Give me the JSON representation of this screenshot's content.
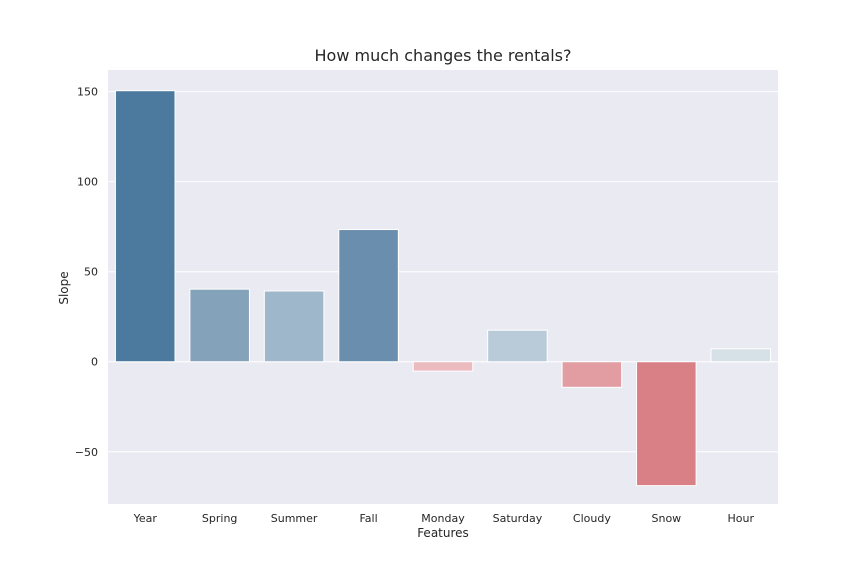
{
  "chart_data": {
    "type": "bar",
    "title": "How much changes the rentals?",
    "xlabel": "Features",
    "ylabel": "Slope",
    "categories": [
      "Year",
      "Spring",
      "Summer",
      "Fall",
      "Monday",
      "Saturday",
      "Cloudy",
      "Snow",
      "Hour"
    ],
    "values": [
      150.5,
      40.3,
      39.3,
      73.4,
      -5.2,
      17.5,
      -14.2,
      -68.8,
      7.2
    ],
    "ylim": [
      -79,
      162
    ],
    "yticks": [
      -50,
      0,
      50,
      100,
      150
    ],
    "ytick_labels": [
      "−50",
      "0",
      "50",
      "100",
      "150"
    ],
    "grid": true,
    "colors": [
      "#4b7a9e",
      "#84a2ba",
      "#9fb7ca",
      "#6a8fae",
      "#ebbbbf",
      "#b9cbd8",
      "#e29da2",
      "#d88086",
      "#d6e0e7"
    ],
    "background": "#eaeaf2"
  }
}
